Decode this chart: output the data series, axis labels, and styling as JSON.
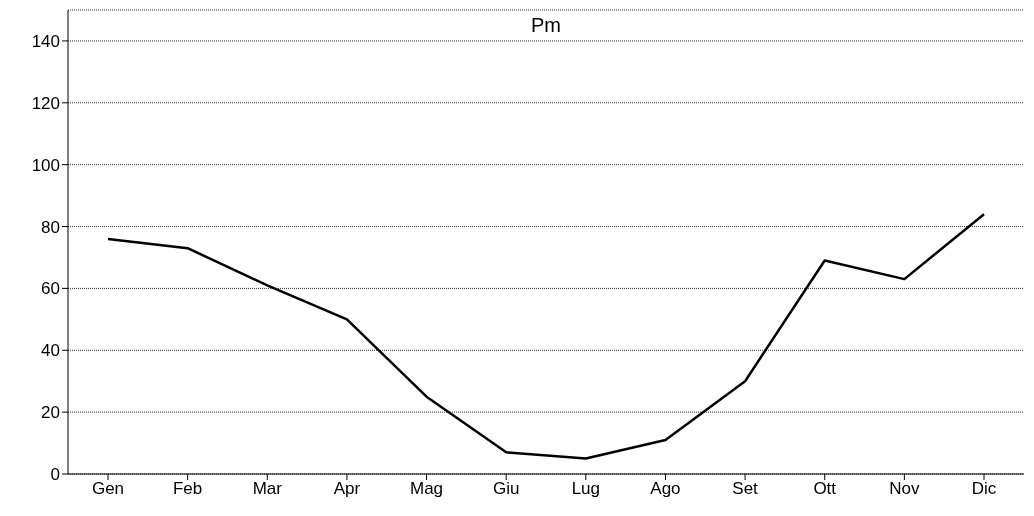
{
  "chart_data": {
    "type": "line",
    "title": "Pm",
    "categories": [
      "Gen",
      "Feb",
      "Mar",
      "Apr",
      "Mag",
      "Giu",
      "Lug",
      "Ago",
      "Set",
      "Ott",
      "Nov",
      "Dic"
    ],
    "series": [
      {
        "color": "#000000",
        "values": [
          76,
          73,
          61,
          50,
          25,
          7,
          5,
          11,
          30,
          69,
          63,
          84
        ]
      }
    ],
    "ylim": [
      0,
      150
    ],
    "yticks": [
      0,
      20,
      40,
      60,
      80,
      100,
      120,
      140
    ],
    "grid": "y",
    "marker": "none",
    "line_style": "solid"
  }
}
